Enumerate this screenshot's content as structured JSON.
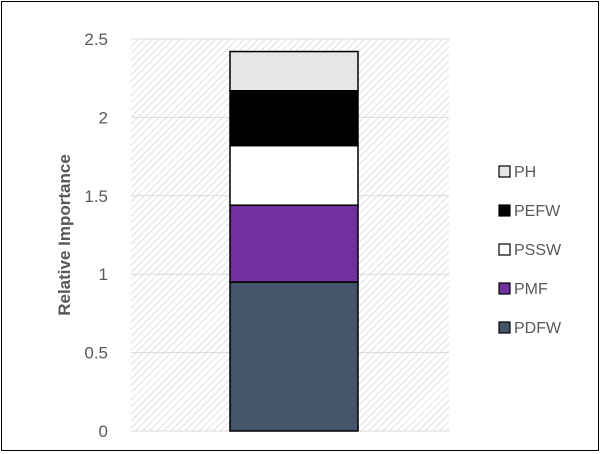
{
  "chart_data": {
    "type": "bar",
    "stacked": true,
    "categories": [
      ""
    ],
    "ylabel": "Relative Importance",
    "xlabel": "",
    "ylim": [
      0,
      2.5
    ],
    "yticks": [
      "0",
      "0.5",
      "1",
      "1.5",
      "2",
      "2.5"
    ],
    "legend_position": "right",
    "grid": true,
    "series": [
      {
        "name": "PDFW",
        "values": [
          0.95
        ],
        "color": "#44546a"
      },
      {
        "name": "PMF",
        "values": [
          0.49
        ],
        "color": "#7030a0"
      },
      {
        "name": "PSSW",
        "values": [
          0.38
        ],
        "color": "#ffffff"
      },
      {
        "name": "PEFW",
        "values": [
          0.35
        ],
        "color": "#000000"
      },
      {
        "name": "PH",
        "values": [
          0.25
        ],
        "color": "#e7e6e6"
      }
    ]
  }
}
